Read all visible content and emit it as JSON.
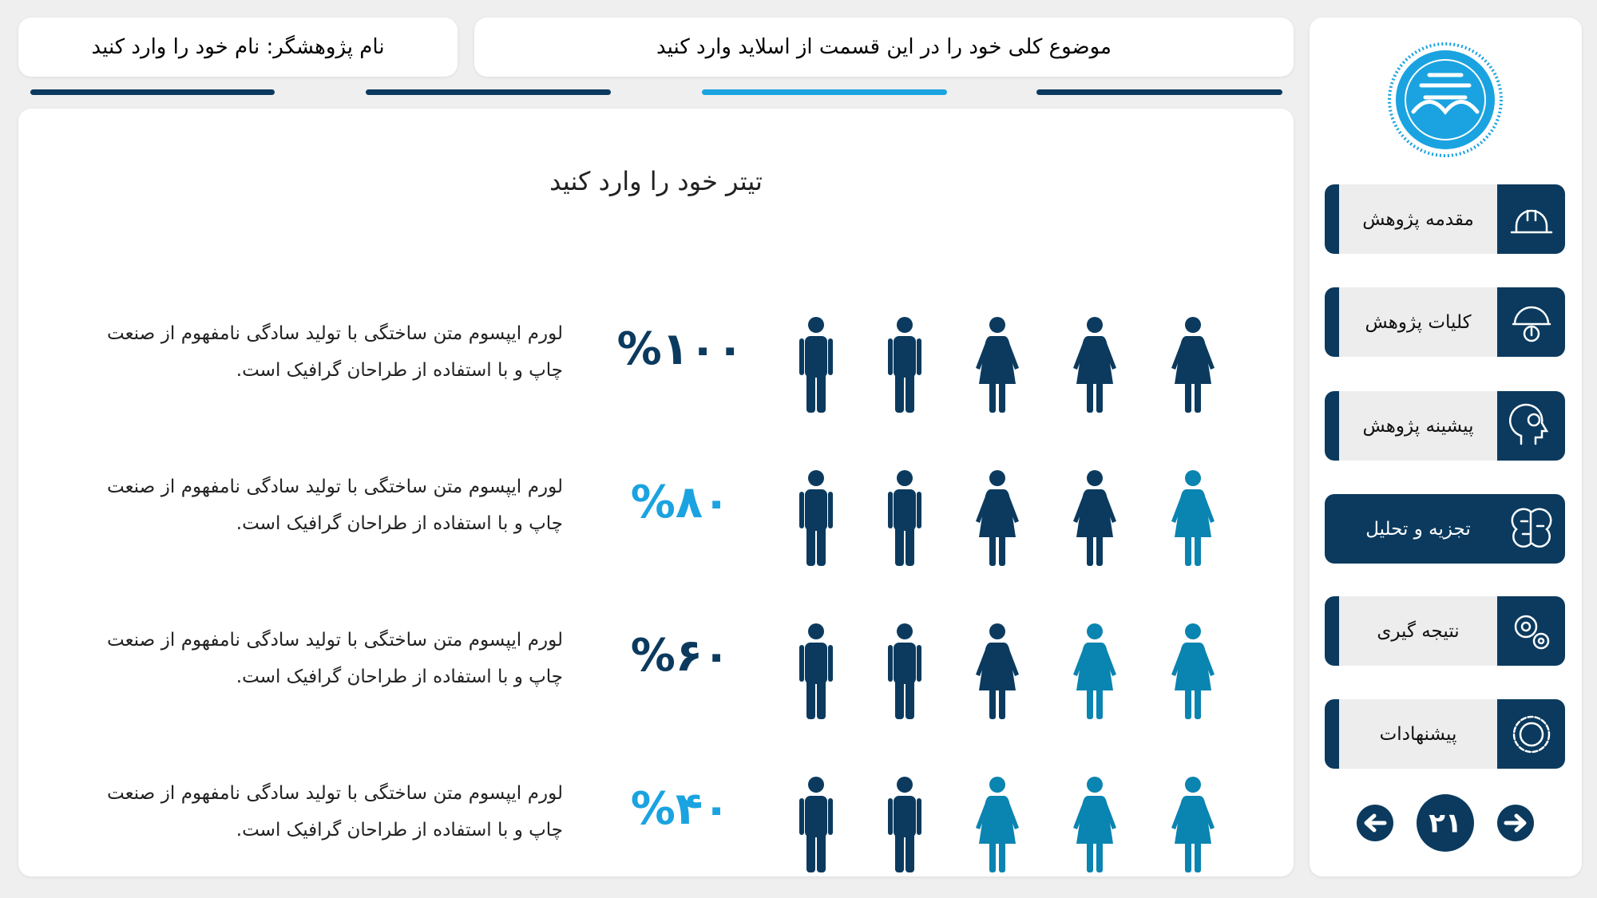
{
  "header": {
    "researcher": "نام پژوهشگر: نام خود را وارد کنید",
    "topic": "موضوع کلی خود را در این قسمت از اسلاید وارد کنید"
  },
  "slide": {
    "title": "تیتر خود را وارد کنید",
    "rows": [
      {
        "percent": "%۱۰۰",
        "text": "لورم ایپسوم متن ساختگی با تولید سادگی نامفهوم از صنعت چاپ و با استفاده از طراحان گرافیک است."
      },
      {
        "percent": "%۸۰",
        "text": "لورم ایپسوم متن ساختگی با تولید سادگی نامفهوم از صنعت چاپ و با استفاده از طراحان گرافیک است."
      },
      {
        "percent": "%۶۰",
        "text": "لورم ایپسوم متن ساختگی با تولید سادگی نامفهوم از صنعت چاپ و با استفاده از طراحان گرافیک است."
      },
      {
        "percent": "%۴۰",
        "text": "لورم ایپسوم متن ساختگی با تولید سادگی نامفهوم از صنعت چاپ و با استفاده از طراحان گرافیک است."
      }
    ]
  },
  "menu": {
    "items": [
      "مقدمه پژوهش",
      "کلیات پژوهش",
      "پیشینه پژوهش",
      "تجزیه و تحلیل",
      "نتیجه گیری",
      "پیشنهادات"
    ]
  },
  "nav": {
    "page": "۲۱"
  }
}
